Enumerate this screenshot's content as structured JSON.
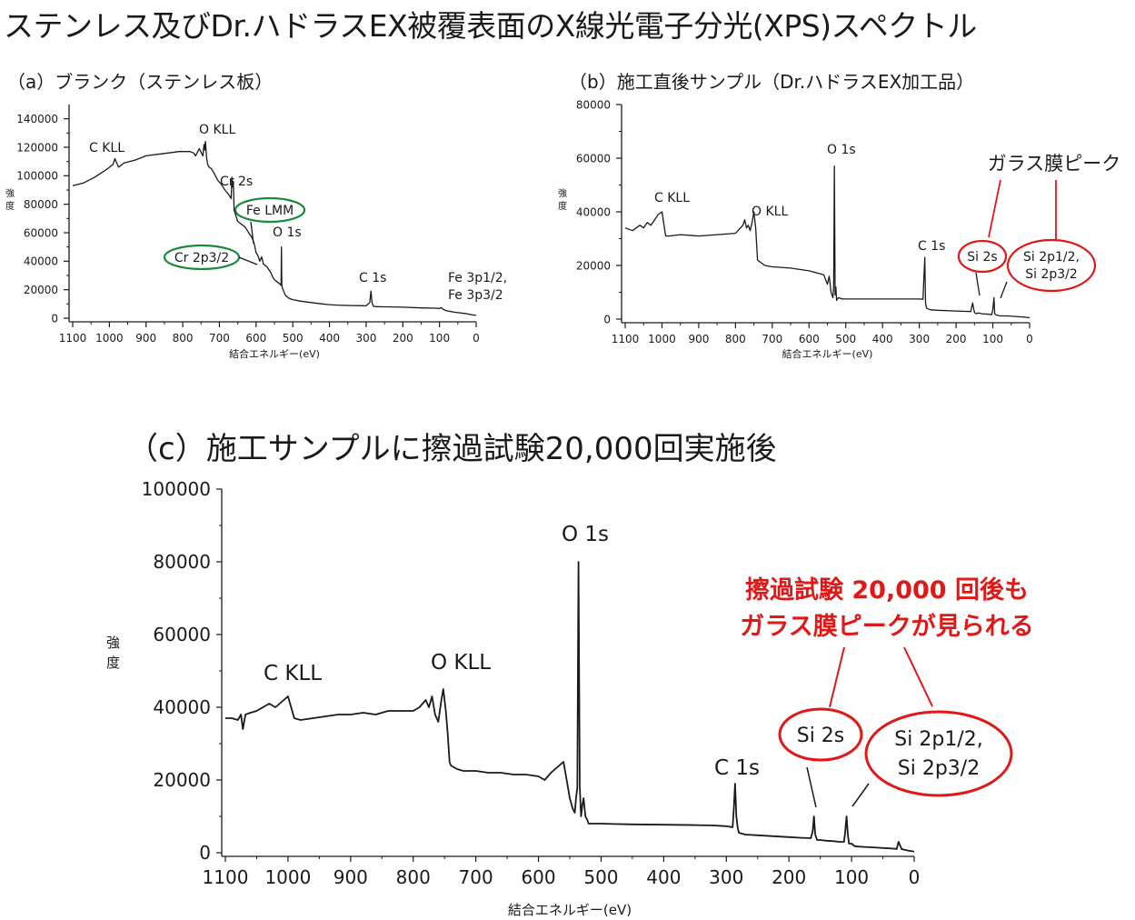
{
  "title": "ステンレス及びDr.ハドラスEX被覆表面のX線光電子分光(XPS)スペクトル",
  "chart_data": [
    {
      "type": "line",
      "id": "a",
      "title": "（a）ブランク（ステンレス板）",
      "xlabel": "結合エネルギー(eV)",
      "ylabel": "強度",
      "xlim": [
        1100,
        0
      ],
      "ylim": [
        0,
        150000
      ],
      "x_ticks": [
        1100,
        1000,
        900,
        800,
        700,
        600,
        500,
        400,
        300,
        200,
        100,
        0
      ],
      "y_ticks": [
        0,
        20000,
        40000,
        60000,
        80000,
        100000,
        120000,
        140000
      ],
      "series": [
        {
          "x": [
            1100,
            1070,
            1040,
            1010,
            990,
            985,
            975,
            960,
            930,
            900,
            870,
            840,
            810,
            780,
            770,
            765,
            755,
            745,
            742,
            740,
            738,
            735,
            732,
            728,
            722,
            715,
            705,
            695,
            685,
            675,
            668,
            666,
            664,
            662,
            660,
            650,
            640,
            630,
            620,
            610,
            605,
            600,
            595,
            590,
            585,
            580,
            570,
            560,
            555,
            550,
            545,
            540,
            535,
            532,
            531,
            530,
            528,
            525,
            520,
            510,
            500,
            480,
            450,
            420,
            400,
            380,
            360,
            340,
            320,
            300,
            290,
            287,
            284,
            280,
            270,
            250,
            200,
            150,
            110,
            100,
            95,
            90,
            80,
            70,
            60,
            50,
            40,
            30,
            20,
            10,
            0
          ],
          "y": [
            93000,
            95000,
            99000,
            104000,
            108000,
            112000,
            106000,
            109000,
            111000,
            114000,
            115000,
            116000,
            117000,
            117000,
            116000,
            114000,
            119000,
            114000,
            122000,
            118000,
            124000,
            113000,
            108000,
            106000,
            105000,
            102000,
            97000,
            94000,
            90000,
            87000,
            84000,
            99000,
            92000,
            96000,
            76000,
            68000,
            66000,
            64000,
            60000,
            56000,
            52000,
            46000,
            44000,
            40000,
            43000,
            38000,
            36000,
            32000,
            29000,
            27000,
            26000,
            25000,
            24000,
            23000,
            50000,
            23000,
            21000,
            19000,
            16000,
            14000,
            13000,
            12000,
            11000,
            10000,
            9500,
            9200,
            9000,
            8900,
            8800,
            8700,
            11000,
            19000,
            11000,
            8300,
            8100,
            8000,
            7700,
            7200,
            7000,
            6800,
            7400,
            6200,
            5200,
            4700,
            4200,
            3900,
            3600,
            3300,
            2800,
            2300,
            2000
          ]
        }
      ],
      "annotations": [
        "C KLL",
        "O KLL",
        "Cr 2s",
        "Fe LMM",
        "O 1s",
        "Cr 2p3/2",
        "C 1s",
        "Fe 3p1/2,",
        "Fe 3p3/2"
      ]
    },
    {
      "type": "line",
      "id": "b",
      "title": "（b）施工直後サンプル（Dr.ハドラスEX加工品）",
      "xlabel": "結合エネルギー(eV)",
      "ylabel": "強度",
      "xlim": [
        1100,
        0
      ],
      "ylim": [
        0,
        80000
      ],
      "x_ticks": [
        1100,
        1000,
        900,
        800,
        700,
        600,
        500,
        400,
        300,
        200,
        100,
        0
      ],
      "y_ticks": [
        0,
        20000,
        40000,
        60000,
        80000
      ],
      "series": [
        {
          "x": [
            1100,
            1080,
            1060,
            1050,
            1040,
            1030,
            1020,
            1010,
            1000,
            990,
            980,
            950,
            900,
            850,
            800,
            780,
            775,
            770,
            765,
            760,
            755,
            750,
            745,
            740,
            730,
            720,
            700,
            650,
            600,
            560,
            550,
            545,
            540,
            535,
            533,
            531,
            529,
            527,
            525,
            520,
            510,
            500,
            480,
            450,
            400,
            350,
            300,
            290,
            288,
            285,
            283,
            280,
            270,
            250,
            200,
            160,
            155,
            150,
            145,
            140,
            130,
            110,
            103,
            100,
            97,
            95,
            90,
            80,
            60,
            40,
            20,
            0
          ],
          "y": [
            34000,
            33000,
            35000,
            34000,
            36000,
            35000,
            37000,
            39000,
            40000,
            31000,
            31000,
            31500,
            31000,
            31500,
            32000,
            35000,
            37000,
            34000,
            35000,
            33000,
            36000,
            40000,
            34000,
            22000,
            21000,
            20000,
            19500,
            19000,
            18000,
            16500,
            13000,
            16000,
            10000,
            8000,
            12000,
            57000,
            9000,
            12000,
            7000,
            8000,
            7500,
            7500,
            7500,
            7500,
            7500,
            7500,
            7500,
            7400,
            14000,
            23000,
            6000,
            4000,
            3500,
            3300,
            3000,
            2800,
            6000,
            2500,
            2000,
            2300,
            2000,
            1800,
            1600,
            3500,
            8000,
            2000,
            1500,
            1200,
            1200,
            1000,
            800,
            500
          ]
        }
      ],
      "annotations": [
        "C KLL",
        "O KLL",
        "O 1s",
        "C 1s",
        "ガラス膜ピーク",
        "Si 2s",
        "Si 2p1/2,",
        "Si 2p3/2"
      ]
    },
    {
      "type": "line",
      "id": "c",
      "title": "（c）施工サンプルに擦過試験20,000回実施後",
      "xlabel": "結合エネルギー(eV)",
      "ylabel": "強度",
      "xlim": [
        1100,
        0
      ],
      "ylim": [
        0,
        100000
      ],
      "x_ticks": [
        1100,
        1000,
        900,
        800,
        700,
        600,
        500,
        400,
        300,
        200,
        100,
        0
      ],
      "y_ticks": [
        0,
        20000,
        40000,
        60000,
        80000,
        100000
      ],
      "series": [
        {
          "x": [
            1100,
            1090,
            1080,
            1075,
            1072,
            1068,
            1060,
            1050,
            1040,
            1030,
            1020,
            1010,
            1000,
            995,
            990,
            980,
            960,
            940,
            920,
            900,
            880,
            860,
            840,
            820,
            800,
            790,
            780,
            775,
            770,
            765,
            760,
            755,
            752,
            748,
            745,
            742,
            740,
            735,
            730,
            720,
            700,
            680,
            660,
            640,
            620,
            600,
            590,
            580,
            560,
            555,
            550,
            545,
            542,
            540,
            538,
            536,
            534,
            532,
            530,
            528,
            525,
            522,
            520,
            510,
            500,
            480,
            450,
            400,
            350,
            320,
            300,
            290,
            288,
            286,
            284,
            282,
            280,
            270,
            250,
            200,
            180,
            165,
            162,
            160,
            158,
            155,
            150,
            140,
            130,
            120,
            112,
            110,
            108,
            106,
            104,
            100,
            95,
            90,
            80,
            60,
            40,
            30,
            28,
            25,
            20,
            10,
            0
          ],
          "y": [
            37000,
            37000,
            36500,
            38000,
            34000,
            38000,
            38500,
            39000,
            40000,
            41000,
            40000,
            41500,
            43000,
            40000,
            37000,
            36500,
            37000,
            37500,
            38000,
            38000,
            38500,
            38000,
            39000,
            39000,
            39000,
            40000,
            42000,
            40000,
            43000,
            38000,
            36000,
            42000,
            45000,
            39000,
            33000,
            25000,
            24000,
            23500,
            23000,
            22500,
            22500,
            22000,
            22000,
            21500,
            21500,
            21000,
            20000,
            22000,
            25000,
            20000,
            15000,
            12000,
            11000,
            15000,
            18000,
            80000,
            18000,
            10000,
            13000,
            15000,
            10000,
            9000,
            8000,
            8000,
            8000,
            7900,
            7800,
            7700,
            7600,
            7500,
            7300,
            7000,
            12000,
            19000,
            10000,
            7000,
            5500,
            5000,
            4800,
            4300,
            4100,
            4000,
            6000,
            10000,
            5000,
            3500,
            3500,
            3300,
            3200,
            3000,
            3000,
            6000,
            10000,
            5000,
            2500,
            2500,
            1800,
            1700,
            1600,
            1400,
            1200,
            1100,
            1000,
            3000,
            1000,
            600,
            300
          ]
        }
      ],
      "annotations": [
        "C KLL",
        "O KLL",
        "O 1s",
        "C 1s",
        "Si 2s",
        "Si 2p1/2,",
        "Si 2p3/2"
      ],
      "callout": [
        "擦過試験 20,000 回後も",
        "ガラス膜ピークが見られる"
      ]
    }
  ],
  "colors": {
    "line": "#1a1a1a",
    "green_mark": "#1a8a3c",
    "red_mark": "#e01818"
  }
}
